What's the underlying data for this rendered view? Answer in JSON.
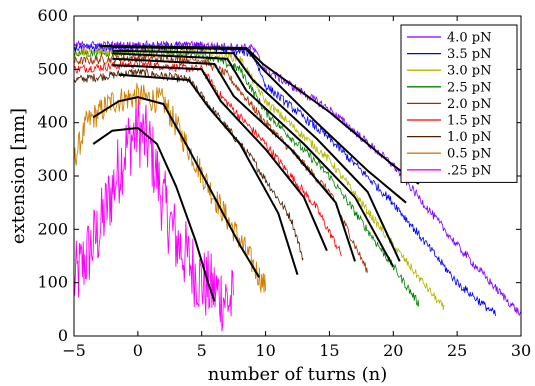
{
  "chart_data": {
    "type": "line",
    "xlabel": "number of turns (n)",
    "ylabel": "extension [nm]",
    "xlim": [
      -5,
      30
    ],
    "ylim": [
      0,
      600
    ],
    "xticks": [
      "−5",
      "0",
      "5",
      "10",
      "15",
      "20",
      "25",
      "30"
    ],
    "xtick_values": [
      -5,
      0,
      5,
      10,
      15,
      20,
      25,
      30
    ],
    "yticks": [
      "0",
      "100",
      "200",
      "300",
      "400",
      "500",
      "600"
    ],
    "ytick_values": [
      0,
      100,
      200,
      300,
      400,
      500,
      600
    ],
    "grid": false,
    "legend_position": "top-right",
    "series": [
      {
        "name": "4.0 pN",
        "color": "#7f00ff",
        "data": [
          [
            -5,
            545
          ],
          [
            0,
            545
          ],
          [
            5,
            545
          ],
          [
            9,
            540
          ],
          [
            10,
            500
          ],
          [
            15,
            425
          ],
          [
            20,
            320
          ],
          [
            25,
            170
          ],
          [
            28,
            90
          ],
          [
            30,
            40
          ]
        ],
        "fit": [
          [
            -3,
            544
          ],
          [
            8.5,
            540
          ],
          [
            9.8,
            510
          ],
          [
            15,
            420
          ],
          [
            20,
            320
          ],
          [
            22,
            285
          ]
        ]
      },
      {
        "name": "3.5 pN",
        "color": "#0000ff",
        "data": [
          [
            -5,
            540
          ],
          [
            0,
            542
          ],
          [
            5,
            542
          ],
          [
            9,
            530
          ],
          [
            10,
            470
          ],
          [
            15,
            370
          ],
          [
            20,
            250
          ],
          [
            25,
            100
          ],
          [
            28,
            40
          ]
        ],
        "fit": [
          [
            -2,
            542
          ],
          [
            8.5,
            538
          ],
          [
            9.8,
            500
          ],
          [
            14,
            400
          ],
          [
            18,
            310
          ],
          [
            21,
            250
          ]
        ]
      },
      {
        "name": "3.0 pN",
        "color": "#b5b500",
        "data": [
          [
            -5,
            530
          ],
          [
            0,
            535
          ],
          [
            5,
            535
          ],
          [
            8,
            520
          ],
          [
            10,
            440
          ],
          [
            15,
            330
          ],
          [
            20,
            170
          ],
          [
            24,
            50
          ]
        ],
        "fit": [
          [
            -2,
            535
          ],
          [
            7.5,
            530
          ],
          [
            9,
            480
          ],
          [
            14,
            370
          ],
          [
            18,
            270
          ],
          [
            20.5,
            140
          ]
        ]
      },
      {
        "name": "2.5 pN",
        "color": "#008000",
        "data": [
          [
            -5,
            530
          ],
          [
            0,
            532
          ],
          [
            5,
            530
          ],
          [
            8,
            500
          ],
          [
            10,
            420
          ],
          [
            15,
            300
          ],
          [
            20,
            130
          ],
          [
            22,
            60
          ]
        ],
        "fit": [
          [
            -2,
            530
          ],
          [
            7,
            520
          ],
          [
            8.5,
            460
          ],
          [
            13,
            360
          ],
          [
            17,
            260
          ],
          [
            20,
            130
          ]
        ]
      },
      {
        "name": "2.0 pN",
        "color": "#a03000",
        "data": [
          [
            -5,
            515
          ],
          [
            0,
            522
          ],
          [
            5,
            518
          ],
          [
            7,
            490
          ],
          [
            10,
            400
          ],
          [
            15,
            270
          ],
          [
            18,
            120
          ]
        ],
        "fit": [
          [
            -2,
            520
          ],
          [
            6,
            510
          ],
          [
            7.5,
            450
          ],
          [
            12,
            350
          ],
          [
            15.5,
            250
          ],
          [
            17,
            140
          ]
        ]
      },
      {
        "name": "1.5 pN",
        "color": "#ff0000",
        "data": [
          [
            -5,
            500
          ],
          [
            0,
            510
          ],
          [
            5,
            500
          ],
          [
            6.5,
            450
          ],
          [
            10,
            360
          ],
          [
            14,
            240
          ],
          [
            16,
            150
          ]
        ],
        "fit": [
          [
            -2,
            508
          ],
          [
            5,
            500
          ],
          [
            6.5,
            440
          ],
          [
            10,
            350
          ],
          [
            13,
            260
          ],
          [
            14.8,
            160
          ]
        ]
      },
      {
        "name": "1.0 pN",
        "color": "#502000",
        "data": [
          [
            -5,
            480
          ],
          [
            0,
            495
          ],
          [
            4,
            480
          ],
          [
            6,
            420
          ],
          [
            9,
            330
          ],
          [
            12,
            220
          ],
          [
            13,
            140
          ]
        ],
        "fit": [
          [
            -1.5,
            490
          ],
          [
            4,
            480
          ],
          [
            5.5,
            430
          ],
          [
            8,
            360
          ],
          [
            11,
            230
          ],
          [
            12.5,
            115
          ]
        ]
      },
      {
        "name": "0.5 pN",
        "color": "#d08000",
        "data": [
          [
            -5,
            330
          ],
          [
            -4,
            400
          ],
          [
            -2,
            440
          ],
          [
            0,
            450
          ],
          [
            2,
            440
          ],
          [
            4,
            350
          ],
          [
            6,
            260
          ],
          [
            8,
            180
          ],
          [
            10,
            90
          ]
        ],
        "fit": [
          [
            -3.5,
            410
          ],
          [
            -1.5,
            440
          ],
          [
            0,
            448
          ],
          [
            2,
            435
          ],
          [
            4,
            350
          ],
          [
            6,
            260
          ],
          [
            8,
            170
          ],
          [
            9.5,
            110
          ]
        ]
      },
      {
        "name": ".25 pN",
        "color": "#ff00ff",
        "data": [
          [
            -5,
            100
          ],
          [
            -3,
            200
          ],
          [
            -1,
            350
          ],
          [
            0,
            390
          ],
          [
            1,
            350
          ],
          [
            2,
            250
          ],
          [
            3,
            180
          ],
          [
            5,
            100
          ],
          [
            7.5,
            60
          ]
        ],
        "fit": [
          [
            -3.5,
            360
          ],
          [
            -2,
            385
          ],
          [
            0,
            390
          ],
          [
            1.5,
            360
          ],
          [
            3,
            280
          ],
          [
            4.5,
            180
          ],
          [
            5.5,
            100
          ],
          [
            6,
            65
          ]
        ]
      }
    ]
  }
}
